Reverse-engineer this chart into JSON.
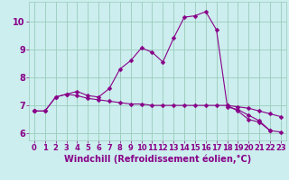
{
  "x": [
    0,
    1,
    2,
    3,
    4,
    5,
    6,
    7,
    8,
    9,
    10,
    11,
    12,
    13,
    14,
    15,
    16,
    17,
    18,
    19,
    20,
    21,
    22,
    23
  ],
  "curve1": [
    6.8,
    6.8,
    7.3,
    7.4,
    7.35,
    7.25,
    7.2,
    7.15,
    7.1,
    7.05,
    7.05,
    7.0,
    7.0,
    7.0,
    7.0,
    7.0,
    7.0,
    7.0,
    7.0,
    6.95,
    6.9,
    6.8,
    6.7,
    6.6
  ],
  "curve2": [
    6.8,
    6.8,
    7.3,
    7.4,
    7.5,
    7.35,
    7.3,
    7.6,
    8.3,
    8.6,
    9.05,
    8.9,
    8.55,
    9.4,
    10.15,
    10.2,
    10.35,
    9.7,
    7.0,
    6.8,
    6.5,
    6.4,
    6.1,
    null
  ],
  "curve3": [
    6.8,
    null,
    null,
    null,
    null,
    null,
    null,
    null,
    null,
    null,
    null,
    null,
    null,
    null,
    null,
    null,
    null,
    null,
    6.95,
    6.85,
    6.65,
    6.45,
    6.1,
    6.05
  ],
  "bg_color": "#cceeee",
  "grid_color": "#99ccbb",
  "xlabel": "Windchill (Refroidissement éolien,°C)",
  "xlim": [
    -0.5,
    23.5
  ],
  "ylim": [
    5.75,
    10.7
  ],
  "yticks": [
    6,
    7,
    8,
    9,
    10
  ],
  "xticks": [
    0,
    1,
    2,
    3,
    4,
    5,
    6,
    7,
    8,
    9,
    10,
    11,
    12,
    13,
    14,
    15,
    16,
    17,
    18,
    19,
    20,
    21,
    22,
    23
  ],
  "xlabel_fontsize": 7,
  "tick_fontsize": 6,
  "line_color": "#880088",
  "marker": "D",
  "marker_size": 2.5,
  "line_width": 0.8
}
